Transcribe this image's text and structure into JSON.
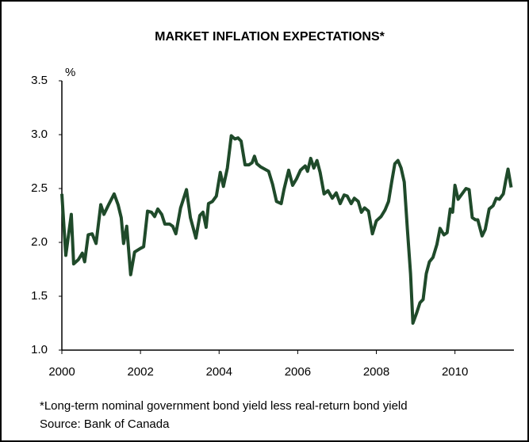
{
  "chart_data": {
    "type": "line",
    "title": "MARKET INFLATION EXPECTATIONS*",
    "y_label": "%",
    "notes": [
      "*Long-term nominal government bond yield less real-return bond yield",
      "Source: Bank of Canada"
    ],
    "x": [
      2000.0,
      2000.1,
      2000.24,
      2000.3,
      2000.42,
      2000.52,
      2000.58,
      2000.67,
      2000.77,
      2000.87,
      2000.99,
      2001.07,
      2001.19,
      2001.33,
      2001.43,
      2001.51,
      2001.57,
      2001.65,
      2001.75,
      2001.85,
      2001.98,
      2002.08,
      2002.18,
      2002.28,
      2002.36,
      2002.44,
      2002.54,
      2002.62,
      2002.74,
      2002.82,
      2002.9,
      2003.02,
      2003.17,
      2003.27,
      2003.41,
      2003.51,
      2003.59,
      2003.67,
      2003.73,
      2003.83,
      2003.93,
      2004.03,
      2004.11,
      2004.21,
      2004.31,
      2004.4,
      2004.48,
      2004.56,
      2004.66,
      2004.76,
      2004.84,
      2004.9,
      2004.96,
      2005.06,
      2005.16,
      2005.26,
      2005.36,
      2005.46,
      2005.58,
      2005.65,
      2005.77,
      2005.87,
      2005.97,
      2006.07,
      2006.19,
      2006.25,
      2006.33,
      2006.41,
      2006.49,
      2006.57,
      2006.67,
      2006.77,
      2006.88,
      2006.98,
      2007.08,
      2007.18,
      2007.26,
      2007.36,
      2007.44,
      2007.54,
      2007.62,
      2007.7,
      2007.8,
      2007.9,
      2008.0,
      2008.12,
      2008.22,
      2008.31,
      2008.39,
      2008.47,
      2008.55,
      2008.63,
      2008.71,
      2008.79,
      2008.87,
      2008.93,
      2009.03,
      2009.11,
      2009.19,
      2009.27,
      2009.35,
      2009.44,
      2009.54,
      2009.62,
      2009.72,
      2009.8,
      2009.88,
      2009.94,
      2010.0,
      2010.08,
      2010.18,
      2010.28,
      2010.36,
      2010.44,
      2010.52,
      2010.58,
      2010.69,
      2010.77,
      2010.87,
      2010.97,
      2011.05,
      2011.13,
      2011.23,
      2011.29,
      2011.35,
      2011.43
    ],
    "series": [
      {
        "name": "Market inflation expectations",
        "color": "#1f4a2a",
        "values": [
          2.45,
          1.88,
          2.26,
          1.8,
          1.84,
          1.9,
          1.82,
          2.07,
          2.08,
          1.99,
          2.35,
          2.26,
          2.35,
          2.45,
          2.35,
          2.23,
          1.99,
          2.15,
          1.7,
          1.91,
          1.94,
          1.96,
          2.29,
          2.28,
          2.24,
          2.31,
          2.26,
          2.17,
          2.17,
          2.15,
          2.08,
          2.32,
          2.49,
          2.23,
          2.04,
          2.25,
          2.28,
          2.14,
          2.36,
          2.38,
          2.43,
          2.65,
          2.52,
          2.69,
          2.99,
          2.96,
          2.97,
          2.94,
          2.72,
          2.72,
          2.74,
          2.8,
          2.73,
          2.7,
          2.68,
          2.66,
          2.54,
          2.38,
          2.36,
          2.49,
          2.67,
          2.53,
          2.59,
          2.67,
          2.71,
          2.66,
          2.78,
          2.69,
          2.76,
          2.65,
          2.45,
          2.48,
          2.41,
          2.46,
          2.36,
          2.44,
          2.43,
          2.36,
          2.41,
          2.38,
          2.28,
          2.32,
          2.29,
          2.08,
          2.2,
          2.24,
          2.3,
          2.38,
          2.56,
          2.73,
          2.76,
          2.69,
          2.56,
          2.12,
          1.71,
          1.25,
          1.35,
          1.44,
          1.47,
          1.71,
          1.82,
          1.86,
          1.98,
          2.13,
          2.07,
          2.09,
          2.31,
          2.28,
          2.53,
          2.4,
          2.45,
          2.5,
          2.49,
          2.23,
          2.21,
          2.21,
          2.06,
          2.12,
          2.31,
          2.34,
          2.41,
          2.4,
          2.45,
          2.57,
          2.68,
          2.51
        ]
      }
    ],
    "xlim": [
      2000,
      2011.5
    ],
    "xticks": [
      2000,
      2002,
      2004,
      2006,
      2008,
      2010
    ],
    "ylim": [
      1.0,
      3.5
    ],
    "yticks": [
      {
        "value": 1.0,
        "label": "1.0"
      },
      1.5,
      {
        "value": 2.0,
        "label": "2.0"
      },
      2.5,
      {
        "value": 3.0,
        "label": "3.0"
      },
      3.5
    ],
    "grid": false,
    "legend": false
  }
}
